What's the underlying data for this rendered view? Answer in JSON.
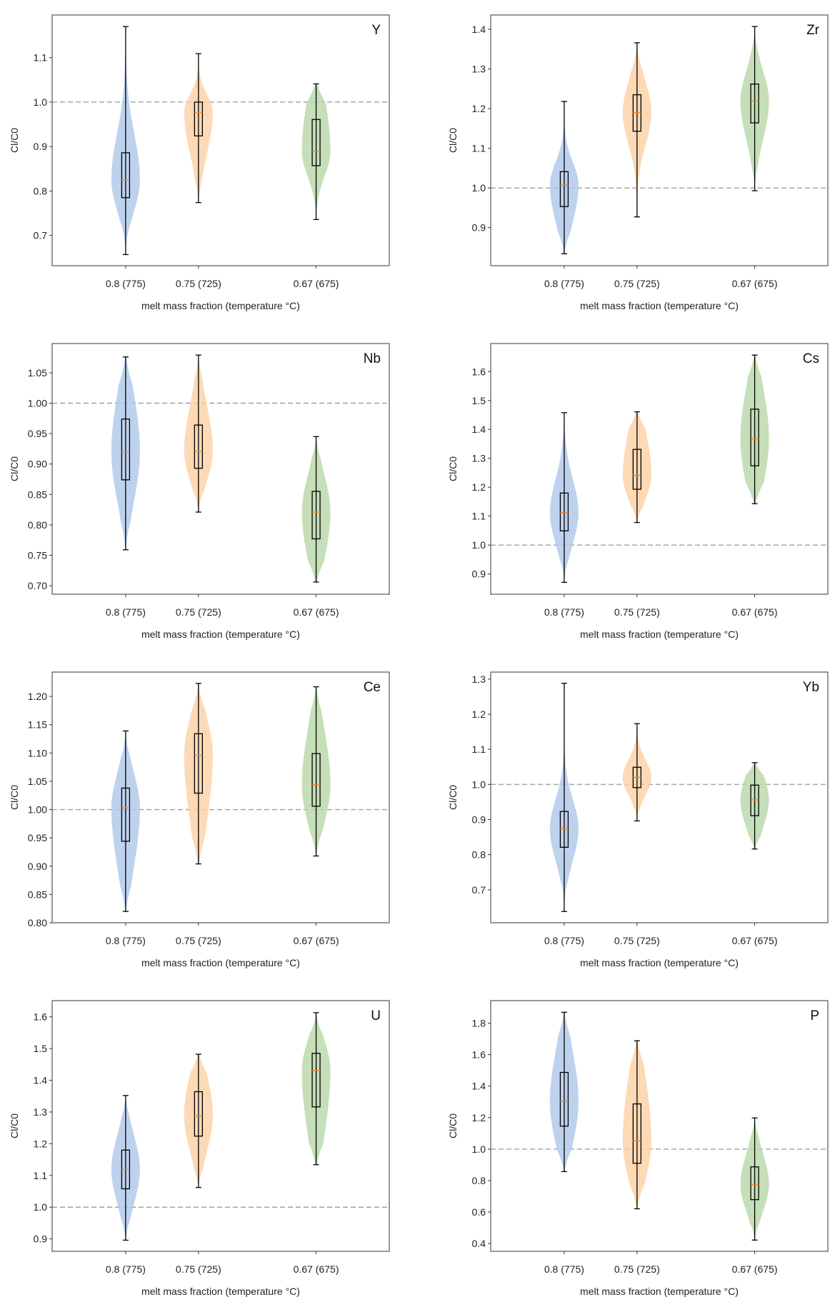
{
  "figure": {
    "xlabel": "melt mass fraction (temperature °C)",
    "ylabel": "Cl/C0",
    "categories": [
      "0.8 (775)",
      "0.75 (725)",
      "0.67 (675)"
    ],
    "colors": {
      "violins": [
        "#aec7ea",
        "#fdd0a2",
        "#b6d7a8"
      ],
      "median": "#f0861f",
      "box": "#000000",
      "reference_line": "#a0a0a0",
      "frame": "#555555"
    }
  },
  "chart_data": [
    {
      "type": "violin",
      "title": "Y",
      "xlabel": "melt mass fraction (temperature °C)",
      "ylabel": "Cl/C0",
      "categories": [
        "0.8 (775)",
        "0.75 (725)",
        "0.67 (675)"
      ],
      "ylim": [
        0.632,
        1.196
      ],
      "yticks": [
        0.7,
        0.8,
        0.9,
        1.0,
        1.1
      ],
      "ytick_labels": [
        "0.7",
        "0.8",
        "0.9",
        "1.0",
        "1.1"
      ],
      "reference_line": 1.0,
      "series": [
        {
          "category": "0.8 (775)",
          "min": 0.657,
          "q1": 0.785,
          "median": 0.825,
          "q3": 0.886,
          "max": 1.17
        },
        {
          "category": "0.75 (725)",
          "min": 0.774,
          "q1": 0.924,
          "median": 0.977,
          "q3": 1.0,
          "max": 1.109
        },
        {
          "category": "0.67 (675)",
          "min": 0.736,
          "q1": 0.857,
          "median": 0.889,
          "q3": 0.961,
          "max": 1.041
        }
      ]
    },
    {
      "type": "violin",
      "title": "Zr",
      "xlabel": "melt mass fraction (temperature °C)",
      "ylabel": "Cl/C0",
      "categories": [
        "0.8 (775)",
        "0.75 (725)",
        "0.67 (675)"
      ],
      "ylim": [
        0.804,
        1.436
      ],
      "yticks": [
        0.9,
        1.0,
        1.1,
        1.2,
        1.3,
        1.4
      ],
      "ytick_labels": [
        "0.9",
        "1.0",
        "1.1",
        "1.2",
        "1.3",
        "1.4"
      ],
      "reference_line": 1.0,
      "series": [
        {
          "category": "0.8 (775)",
          "min": 0.834,
          "q1": 0.953,
          "median": 1.007,
          "q3": 1.041,
          "max": 1.218
        },
        {
          "category": "0.75 (725)",
          "min": 0.927,
          "q1": 1.143,
          "median": 1.19,
          "q3": 1.235,
          "max": 1.366
        },
        {
          "category": "0.67 (675)",
          "min": 0.993,
          "q1": 1.164,
          "median": 1.219,
          "q3": 1.262,
          "max": 1.407
        }
      ]
    },
    {
      "type": "violin",
      "title": "Nb",
      "xlabel": "melt mass fraction (temperature °C)",
      "ylabel": "Cl/C0",
      "categories": [
        "0.8 (775)",
        "0.75 (725)",
        "0.67 (675)"
      ],
      "ylim": [
        0.686,
        1.098
      ],
      "yticks": [
        0.7,
        0.75,
        0.8,
        0.85,
        0.9,
        0.95,
        1.0,
        1.05
      ],
      "ytick_labels": [
        "0.70",
        "0.75",
        "0.80",
        "0.85",
        "0.90",
        "0.95",
        "1.00",
        "1.05"
      ],
      "reference_line": 1.0,
      "series": [
        {
          "category": "0.8 (775)",
          "min": 0.759,
          "q1": 0.874,
          "median": 0.92,
          "q3": 0.974,
          "max": 1.076
        },
        {
          "category": "0.75 (725)",
          "min": 0.821,
          "q1": 0.893,
          "median": 0.921,
          "q3": 0.964,
          "max": 1.079
        },
        {
          "category": "0.67 (675)",
          "min": 0.706,
          "q1": 0.777,
          "median": 0.821,
          "q3": 0.855,
          "max": 0.945
        }
      ]
    },
    {
      "type": "violin",
      "title": "Cs",
      "xlabel": "melt mass fraction (temperature °C)",
      "ylabel": "Cl/C0",
      "categories": [
        "0.8 (775)",
        "0.75 (725)",
        "0.67 (675)"
      ],
      "ylim": [
        0.83,
        1.697
      ],
      "yticks": [
        0.9,
        1.0,
        1.1,
        1.2,
        1.3,
        1.4,
        1.5,
        1.6
      ],
      "ytick_labels": [
        "0.9",
        "1.0",
        "1.1",
        "1.2",
        "1.3",
        "1.4",
        "1.5",
        "1.6"
      ],
      "reference_line": 1.0,
      "series": [
        {
          "category": "0.8 (775)",
          "min": 0.871,
          "q1": 1.049,
          "median": 1.112,
          "q3": 1.18,
          "max": 1.458
        },
        {
          "category": "0.75 (725)",
          "min": 1.078,
          "q1": 1.193,
          "median": 1.241,
          "q3": 1.331,
          "max": 1.461
        },
        {
          "category": "0.67 (675)",
          "min": 1.143,
          "q1": 1.274,
          "median": 1.368,
          "q3": 1.47,
          "max": 1.657
        }
      ]
    },
    {
      "type": "violin",
      "title": "Ce",
      "xlabel": "melt mass fraction (temperature °C)",
      "ylabel": "Cl/C0",
      "categories": [
        "0.8 (775)",
        "0.75 (725)",
        "0.67 (675)"
      ],
      "ylim": [
        0.8,
        1.243
      ],
      "yticks": [
        0.8,
        0.85,
        0.9,
        0.95,
        1.0,
        1.05,
        1.1,
        1.15,
        1.2
      ],
      "ytick_labels": [
        "0.80",
        "0.85",
        "0.90",
        "0.95",
        "1.00",
        "1.05",
        "1.10",
        "1.15",
        "1.20"
      ],
      "reference_line": 1.0,
      "series": [
        {
          "category": "0.8 (775)",
          "min": 0.82,
          "q1": 0.944,
          "median": 1.003,
          "q3": 1.038,
          "max": 1.139
        },
        {
          "category": "0.75 (725)",
          "min": 0.904,
          "q1": 1.029,
          "median": 1.096,
          "q3": 1.134,
          "max": 1.223
        },
        {
          "category": "0.67 (675)",
          "min": 0.918,
          "q1": 1.006,
          "median": 1.044,
          "q3": 1.099,
          "max": 1.217
        }
      ]
    },
    {
      "type": "violin",
      "title": "Yb",
      "xlabel": "melt mass fraction (temperature °C)",
      "ylabel": "Cl/C0",
      "categories": [
        "0.8 (775)",
        "0.75 (725)",
        "0.67 (675)"
      ],
      "ylim": [
        0.606,
        1.32
      ],
      "yticks": [
        0.7,
        0.8,
        0.9,
        1.0,
        1.1,
        1.2,
        1.3
      ],
      "ytick_labels": [
        "0.7",
        "0.8",
        "0.9",
        "1.0",
        "1.1",
        "1.2",
        "1.3"
      ],
      "reference_line": 1.0,
      "series": [
        {
          "category": "0.8 (775)",
          "min": 0.638,
          "q1": 0.821,
          "median": 0.874,
          "q3": 0.923,
          "max": 1.288
        },
        {
          "category": "0.75 (725)",
          "min": 0.896,
          "q1": 0.991,
          "median": 1.02,
          "q3": 1.049,
          "max": 1.173
        },
        {
          "category": "0.67 (675)",
          "min": 0.816,
          "q1": 0.911,
          "median": 0.956,
          "q3": 0.998,
          "max": 1.062
        }
      ]
    },
    {
      "type": "violin",
      "title": "U",
      "xlabel": "melt mass fraction (temperature °C)",
      "ylabel": "Cl/C0",
      "categories": [
        "0.8 (775)",
        "0.75 (725)",
        "0.67 (675)"
      ],
      "ylim": [
        0.861,
        1.651
      ],
      "yticks": [
        0.9,
        1.0,
        1.1,
        1.2,
        1.3,
        1.4,
        1.5,
        1.6
      ],
      "ytick_labels": [
        "0.9",
        "1.0",
        "1.1",
        "1.2",
        "1.3",
        "1.4",
        "1.5",
        "1.6"
      ],
      "reference_line": 1.0,
      "series": [
        {
          "category": "0.8 (775)",
          "min": 0.896,
          "q1": 1.058,
          "median": 1.119,
          "q3": 1.18,
          "max": 1.352
        },
        {
          "category": "0.75 (725)",
          "min": 1.062,
          "q1": 1.224,
          "median": 1.288,
          "q3": 1.364,
          "max": 1.482
        },
        {
          "category": "0.67 (675)",
          "min": 1.134,
          "q1": 1.316,
          "median": 1.431,
          "q3": 1.485,
          "max": 1.613
        }
      ]
    },
    {
      "type": "violin",
      "title": "P",
      "xlabel": "melt mass fraction (temperature °C)",
      "ylabel": "Cl/C0",
      "categories": [
        "0.8 (775)",
        "0.75 (725)",
        "0.67 (675)"
      ],
      "ylim": [
        0.351,
        1.943
      ],
      "yticks": [
        0.4,
        0.6,
        0.8,
        1.0,
        1.2,
        1.4,
        1.6,
        1.8
      ],
      "ytick_labels": [
        "0.4",
        "0.6",
        "0.8",
        "1.0",
        "1.2",
        "1.4",
        "1.6",
        "1.8"
      ],
      "reference_line": 1.0,
      "series": [
        {
          "category": "0.8 (775)",
          "min": 0.857,
          "q1": 1.146,
          "median": 1.302,
          "q3": 1.487,
          "max": 1.869
        },
        {
          "category": "0.75 (725)",
          "min": 0.621,
          "q1": 0.91,
          "median": 1.053,
          "q3": 1.287,
          "max": 1.688
        },
        {
          "category": "0.67 (675)",
          "min": 0.422,
          "q1": 0.679,
          "median": 0.776,
          "q3": 0.887,
          "max": 1.198
        }
      ]
    }
  ]
}
